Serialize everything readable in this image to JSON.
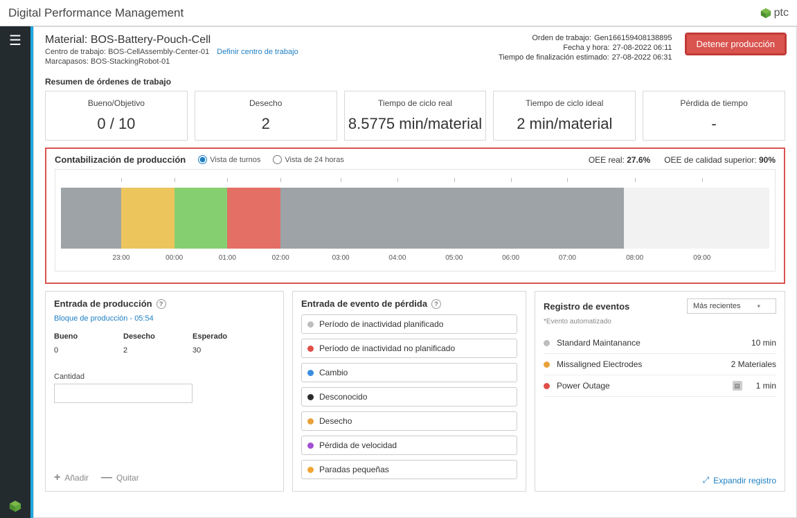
{
  "app": {
    "title": "Digital Performance Management",
    "brand": "ptc"
  },
  "header": {
    "material_label": "Material:",
    "material_value": "BOS-Battery-Pouch-Cell",
    "work_center_label": "Centro de trabajo:",
    "work_center_value": "BOS-CellAssembly-Center-01",
    "define_link": "Definir centro de trabajo",
    "pacemaker_label": "Marcapasos:",
    "pacemaker_value": "BOS-StackingRobot-01",
    "work_order_label": "Orden de trabajo:",
    "work_order_value": "Gen166159408138895",
    "datetime_label": "Fecha y hora:",
    "datetime_value": "27-08-2022 06:11",
    "eta_label": "Tiempo de finalización estimado:",
    "eta_value": "27-08-2022 06:31",
    "stop_button": "Detener producción"
  },
  "summary": {
    "title": "Resumen de órdenes de trabajo",
    "kpis": [
      {
        "label": "Bueno/Objetivo",
        "value": "0 / 10"
      },
      {
        "label": "Desecho",
        "value": "2"
      },
      {
        "label": "Tiempo de ciclo real",
        "value": "8.5775 min/material"
      },
      {
        "label": "Tiempo de ciclo ideal",
        "value": "2 min/material"
      },
      {
        "label": "Pérdida de tiempo",
        "value": "-"
      }
    ]
  },
  "accounting": {
    "title": "Contabilización de producción",
    "view_shift": "Vista de turnos",
    "view_24h": "Vista de 24 horas",
    "oee_real_label": "OEE real:",
    "oee_real_value": "27.6%",
    "oee_quality_label": "OEE de calidad superior:",
    "oee_quality_value": "90%",
    "timeline": {
      "segments": [
        {
          "color": "#9da3a6",
          "width_pct": 8.5
        },
        {
          "color": "#ecc55d",
          "width_pct": 7.5
        },
        {
          "color": "#86cf71",
          "width_pct": 7.5
        },
        {
          "color": "#e36f65",
          "width_pct": 7.5
        },
        {
          "color": "#9da3a6",
          "width_pct": 48.5
        },
        {
          "color": "#f2f2f2",
          "width_pct": 20.5
        }
      ],
      "labels": [
        "23:00",
        "00:00",
        "01:00",
        "02:00",
        "03:00",
        "04:00",
        "05:00",
        "06:00",
        "07:00",
        "08:00",
        "09:00"
      ],
      "label_positions_pct": [
        8.5,
        16,
        23.5,
        31,
        39.5,
        47.5,
        55.5,
        63.5,
        71.5,
        81,
        90.5
      ]
    }
  },
  "prod_entry": {
    "title": "Entrada de producción",
    "block_label": "Bloque de producción - 05:54",
    "cols": {
      "good": "Bueno",
      "scrap": "Desecho",
      "expected": "Esperado"
    },
    "vals": {
      "good": "0",
      "scrap": "2",
      "expected": "30"
    },
    "qty_label": "Cantidad",
    "add": "Añadir",
    "remove": "Quitar"
  },
  "loss_entry": {
    "title": "Entrada de evento de pérdida",
    "items": [
      {
        "label": "Período de inactividad planificado",
        "color": "#bdbdbd"
      },
      {
        "label": "Período de inactividad no planificado",
        "color": "#e04f46"
      },
      {
        "label": "Cambio",
        "color": "#3a8de0"
      },
      {
        "label": "Desconocido",
        "color": "#2b2b2b"
      },
      {
        "label": "Desecho",
        "color": "#e9a23b"
      },
      {
        "label": "Pérdida de velocidad",
        "color": "#a24fd1"
      },
      {
        "label": "Paradas pequeñas",
        "color": "#f0a532"
      }
    ]
  },
  "event_log": {
    "title": "Registro de eventos",
    "sort": "Más recientes",
    "auto_note": "*Evento automatizado",
    "rows": [
      {
        "color": "#bdbdbd",
        "name": "Standard Maintanance",
        "value": "10 min",
        "note": false
      },
      {
        "color": "#e9a23b",
        "name": "Missaligned Electrodes",
        "value": "2 Materiales",
        "note": false
      },
      {
        "color": "#e04f46",
        "name": "Power Outage",
        "value": "1 min",
        "note": true
      }
    ],
    "expand": "Expandir registro"
  }
}
